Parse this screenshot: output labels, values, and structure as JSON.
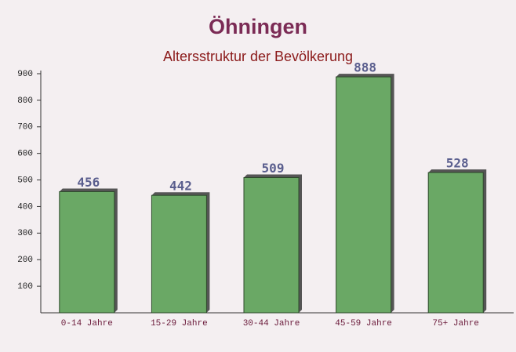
{
  "chart_data": {
    "type": "bar",
    "title": "Öhningen",
    "subtitle": "Altersstruktur der Bevölkerung",
    "categories": [
      "0-14 Jahre",
      "15-29 Jahre",
      "30-44 Jahre",
      "45-59 Jahre",
      "75+ Jahre"
    ],
    "values": [
      456,
      442,
      509,
      888,
      528
    ],
    "color": "#6aa865",
    "ylim": [
      0,
      900
    ],
    "yticks": [
      100,
      200,
      300,
      400,
      500,
      600,
      700,
      800,
      900
    ],
    "grid": false
  }
}
